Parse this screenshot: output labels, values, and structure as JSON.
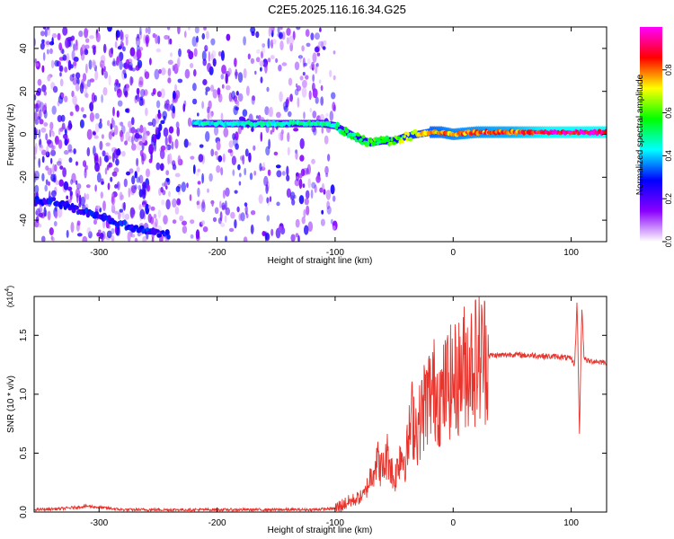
{
  "page_title": "C2E5.2025.116.16.34.G25",
  "chart_data": [
    {
      "type": "heatmap",
      "xlabel": "Height of straight line (km)",
      "ylabel": "Frequency (Hz)",
      "xlim": [
        -355,
        130
      ],
      "ylim": [
        -50,
        50
      ],
      "x_ticks": [
        -300,
        -200,
        -100,
        0,
        100
      ],
      "y_ticks": [
        -40,
        -20,
        0,
        20,
        40
      ],
      "colorbar": {
        "label": "Normalized spectral amplitude",
        "range": [
          0,
          1
        ],
        "ticks": [
          0.0,
          0.2,
          0.4,
          0.6,
          0.8
        ],
        "tick_labels": [
          "0.0",
          "0.2",
          "0.4",
          "0.6",
          "0.8"
        ],
        "colormap": [
          "#ffffff",
          "#8a00ff",
          "#0000ff",
          "#00ffff",
          "#00ff00",
          "#ffff00",
          "#ff0000",
          "#ff00ff"
        ]
      },
      "features": [
        {
          "description": "broadband noise scattered across all frequencies",
          "x_range": [
            -355,
            -100
          ],
          "amplitude": 0.2
        },
        {
          "description": "low-frequency drift track",
          "points": [
            [
              -355,
              -31
            ],
            [
              -340,
              -31
            ],
            [
              -320,
              -35
            ],
            [
              -300,
              -38
            ],
            [
              -280,
              -42
            ],
            [
              -260,
              -45
            ],
            [
              -240,
              -47
            ]
          ],
          "amplitude": 0.25
        },
        {
          "description": "dominant signal track",
          "points": [
            [
              -220,
              5
            ],
            [
              -200,
              5
            ],
            [
              -150,
              5
            ],
            [
              -110,
              5
            ],
            [
              -100,
              4
            ],
            [
              -90,
              1
            ],
            [
              -80,
              -2
            ],
            [
              -70,
              -4
            ],
            [
              -60,
              -3
            ],
            [
              -50,
              -3
            ],
            [
              -40,
              -1
            ],
            [
              -30,
              0
            ],
            [
              -20,
              1
            ],
            [
              -10,
              1
            ],
            [
              0,
              0
            ],
            [
              20,
              1
            ],
            [
              50,
              1
            ],
            [
              80,
              1
            ],
            [
              100,
              1
            ],
            [
              130,
              1
            ]
          ],
          "amplitude_profile": [
            [
              -220,
              0.45
            ],
            [
              -100,
              0.5
            ],
            [
              -60,
              0.6
            ],
            [
              -20,
              0.75
            ],
            [
              0,
              0.8
            ],
            [
              50,
              0.85
            ],
            [
              80,
              0.95
            ],
            [
              130,
              0.95
            ]
          ]
        }
      ]
    },
    {
      "type": "line",
      "xlabel": "Height of straight line (km)",
      "ylabel": "SNR (10 * v/v)",
      "y_multiplier_label": "(x10",
      "y_multiplier_exp": "4",
      "y_multiplier_close": ")",
      "xlim": [
        -355,
        130
      ],
      "ylim": [
        0,
        1.83
      ],
      "x_ticks": [
        -300,
        -200,
        -100,
        0,
        100
      ],
      "y_ticks": [
        0.0,
        0.5,
        1.0,
        1.5
      ],
      "y_tick_labels": [
        "0.0",
        "0.5",
        "1.0",
        "1.5"
      ],
      "series": [
        {
          "color": "#e8342c",
          "x": [
            -355,
            -330,
            -310,
            -280,
            -250,
            -200,
            -150,
            -120,
            -100,
            -90,
            -80,
            -75,
            -70,
            -65,
            -60,
            -55,
            -50,
            -45,
            -40,
            -35,
            -30,
            -25,
            -20,
            -15,
            -10,
            -5,
            0,
            5,
            10,
            15,
            20,
            25,
            30,
            40,
            50,
            60,
            70,
            80,
            90,
            100,
            103,
            105,
            107,
            109,
            111,
            115,
            120,
            130
          ],
          "y": [
            0.02,
            0.03,
            0.05,
            0.02,
            0.02,
            0.02,
            0.02,
            0.02,
            0.03,
            0.08,
            0.12,
            0.15,
            0.3,
            0.45,
            0.35,
            0.5,
            0.25,
            0.5,
            0.45,
            0.8,
            0.7,
            0.9,
            1.0,
            1.05,
            0.95,
            1.1,
            1.1,
            1.15,
            1.25,
            1.28,
            1.3,
            1.32,
            1.33,
            1.33,
            1.34,
            1.33,
            1.33,
            1.32,
            1.32,
            1.3,
            1.25,
            1.8,
            0.65,
            1.75,
            1.3,
            1.28,
            1.28,
            1.27
          ]
        }
      ]
    }
  ]
}
